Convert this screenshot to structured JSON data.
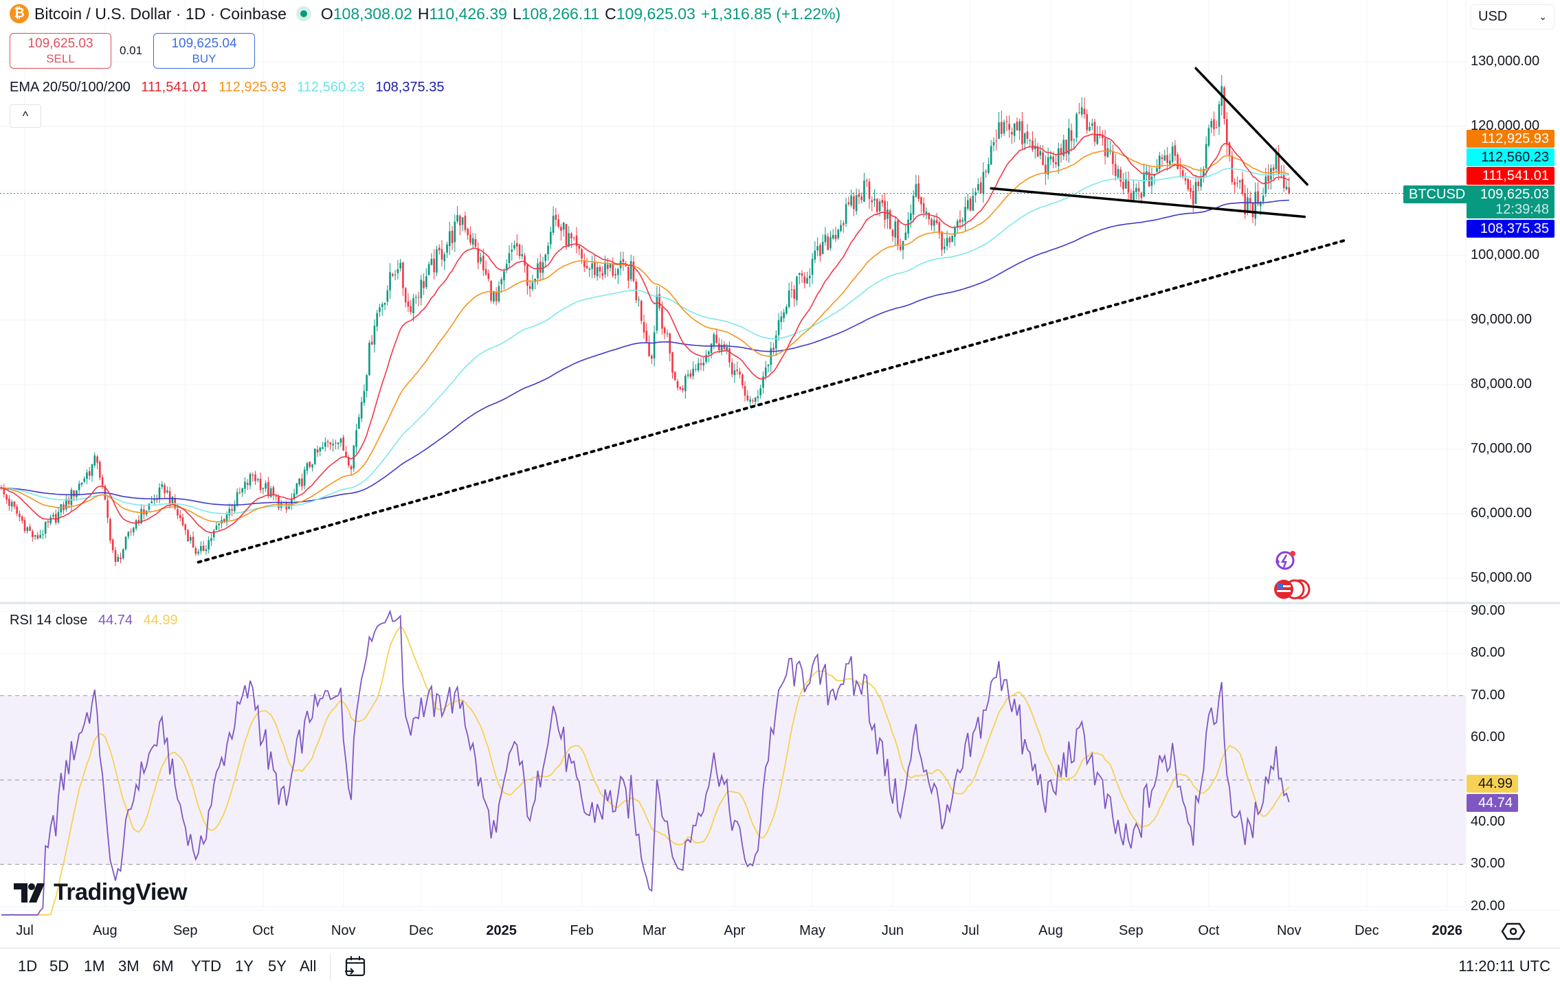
{
  "header": {
    "coin_icon": "bitcoin-icon",
    "title": "Bitcoin / U.S. Dollar · 1D · Coinbase",
    "market_status": "market-open-dot",
    "o_label": "O",
    "o": "108,308.02",
    "h_label": "H",
    "h": "110,426.39",
    "l_label": "L",
    "l": "108,266.11",
    "c_label": "C",
    "c": "109,625.03",
    "change": "+1,316.85 (+1.22%)"
  },
  "trade": {
    "sell_price": "109,625.03",
    "sell_label": "SELL",
    "spread": "0.01",
    "buy_price": "109,625.04",
    "buy_label": "BUY"
  },
  "ema_legend": {
    "label": "EMA 20/50/100/200",
    "ema20": "111,541.01",
    "ema50": "112,925.93",
    "ema100": "112,560.23",
    "ema200": "108,375.35",
    "collapse_icon": "^"
  },
  "currency": {
    "value": "USD",
    "icon": "chevron-down-icon"
  },
  "price_axis": [
    "130,000.00",
    "120,000.00",
    "100,000.00",
    "90,000.00",
    "80,000.00",
    "70,000.00",
    "60,000.00",
    "50,000.00"
  ],
  "price_labels": {
    "ema50": "112,925.93",
    "ema100": "112,560.23",
    "ema20": "111,541.01",
    "symbol": "BTCUSD",
    "last": "109,625.03",
    "countdown": "12:39:48",
    "ema200": "108,375.35"
  },
  "rsi_legend": {
    "label": "RSI 14 close",
    "rsi": "44.74",
    "ma": "44.99"
  },
  "rsi_axis": [
    "90.00",
    "80.00",
    "70.00",
    "60.00",
    "40.00",
    "30.00",
    "20.00"
  ],
  "rsi_labels": {
    "ma": "44.99",
    "rsi": "44.74"
  },
  "time_axis": [
    {
      "label": "Jul",
      "date": "2024-07-01"
    },
    {
      "label": "Aug",
      "date": "2024-08-01"
    },
    {
      "label": "Sep",
      "date": "2024-09-01"
    },
    {
      "label": "Oct",
      "date": "2024-10-01"
    },
    {
      "label": "Nov",
      "date": "2024-11-01"
    },
    {
      "label": "Dec",
      "date": "2024-12-01"
    },
    {
      "label": "2025",
      "date": "2025-01-01",
      "bold": true
    },
    {
      "label": "Feb",
      "date": "2025-02-01"
    },
    {
      "label": "Mar",
      "date": "2025-03-01"
    },
    {
      "label": "Apr",
      "date": "2025-04-01"
    },
    {
      "label": "May",
      "date": "2025-05-01"
    },
    {
      "label": "Jun",
      "date": "2025-06-01"
    },
    {
      "label": "Jul",
      "date": "2025-07-01"
    },
    {
      "label": "Aug",
      "date": "2025-08-01"
    },
    {
      "label": "Sep",
      "date": "2025-09-01"
    },
    {
      "label": "Oct",
      "date": "2025-10-01"
    },
    {
      "label": "Nov",
      "date": "2025-11-01"
    },
    {
      "label": "Dec",
      "date": "2025-12-01"
    },
    {
      "label": "2026",
      "date": "2026-01-01",
      "bold": true
    }
  ],
  "ranges": [
    "1D",
    "5D",
    "1M",
    "3M",
    "6M",
    "YTD",
    "1Y",
    "5Y",
    "All"
  ],
  "clock": "11:20:11 UTC",
  "logo": "TradingView",
  "colors": {
    "up": "#089981",
    "down": "#f23645",
    "ema20": "#f23645",
    "ema50": "#f7931a",
    "ema100": "#7ee8e8",
    "ema200": "#3f37c9",
    "rsi": "#7e57c2",
    "rsi_ma": "#f7d154",
    "rsi_band": "#f3f0fb",
    "last_price": "#089981"
  },
  "chart_data": {
    "type": "candlestick",
    "symbol": "BTCUSD",
    "interval": "1D",
    "ylim": [
      45000,
      133000
    ],
    "rsi_ylim": [
      18,
      92
    ],
    "closes_approx": [
      [
        "2024-06-21",
        64000
      ],
      [
        "2024-07-05",
        56000
      ],
      [
        "2024-07-14",
        60000
      ],
      [
        "2024-07-29",
        68500
      ],
      [
        "2024-08-05",
        52000
      ],
      [
        "2024-08-13",
        59000
      ],
      [
        "2024-08-24",
        64000
      ],
      [
        "2024-09-06",
        53500
      ],
      [
        "2024-09-17",
        60000
      ],
      [
        "2024-09-27",
        66000
      ],
      [
        "2024-10-10",
        60500
      ],
      [
        "2024-10-20",
        68500
      ],
      [
        "2024-10-29",
        72000
      ],
      [
        "2024-11-04",
        68000
      ],
      [
        "2024-11-13",
        90000
      ],
      [
        "2024-11-22",
        99000
      ],
      [
        "2024-11-26",
        92000
      ],
      [
        "2024-12-05",
        98000
      ],
      [
        "2024-12-17",
        106000
      ],
      [
        "2024-12-30",
        92500
      ],
      [
        "2025-01-06",
        102000
      ],
      [
        "2025-01-13",
        94500
      ],
      [
        "2025-01-21",
        106000
      ],
      [
        "2025-02-03",
        98000
      ],
      [
        "2025-02-20",
        97500
      ],
      [
        "2025-02-28",
        84000
      ],
      [
        "2025-03-02",
        94000
      ],
      [
        "2025-03-10",
        79000
      ],
      [
        "2025-03-25",
        87500
      ],
      [
        "2025-04-08",
        76500
      ],
      [
        "2025-04-22",
        93500
      ],
      [
        "2025-05-10",
        104000
      ],
      [
        "2025-05-22",
        111000
      ],
      [
        "2025-06-05",
        101500
      ],
      [
        "2025-06-10",
        110000
      ],
      [
        "2025-06-22",
        101000
      ],
      [
        "2025-07-03",
        109000
      ],
      [
        "2025-07-14",
        121500
      ],
      [
        "2025-08-01",
        113500
      ],
      [
        "2025-08-14",
        122000
      ],
      [
        "2025-09-01",
        108500
      ],
      [
        "2025-09-17",
        116500
      ],
      [
        "2025-09-25",
        109500
      ],
      [
        "2025-10-06",
        124500
      ],
      [
        "2025-10-10",
        112500
      ],
      [
        "2025-10-17",
        106500
      ],
      [
        "2025-10-27",
        115000
      ],
      [
        "2025-11-01",
        109625
      ]
    ],
    "indicators": [
      "EMA 20",
      "EMA 50",
      "EMA 100",
      "EMA 200",
      "RSI 14 close",
      "RSI MA"
    ],
    "rsi_levels": [
      70,
      50,
      30
    ],
    "last_price": 109625.03,
    "drawings": [
      {
        "type": "trendline",
        "style": "solid",
        "from": [
          "2025-09-26",
          129000
        ],
        "to": [
          "2025-11-08",
          111000
        ]
      },
      {
        "type": "trendline",
        "style": "solid",
        "from": [
          "2025-07-09",
          110400
        ],
        "to": [
          "2025-11-07",
          106000
        ]
      },
      {
        "type": "trendline",
        "style": "dotted",
        "from": [
          "2024-09-06",
          52500
        ],
        "to": [
          "2025-11-23",
          102400
        ]
      }
    ]
  }
}
